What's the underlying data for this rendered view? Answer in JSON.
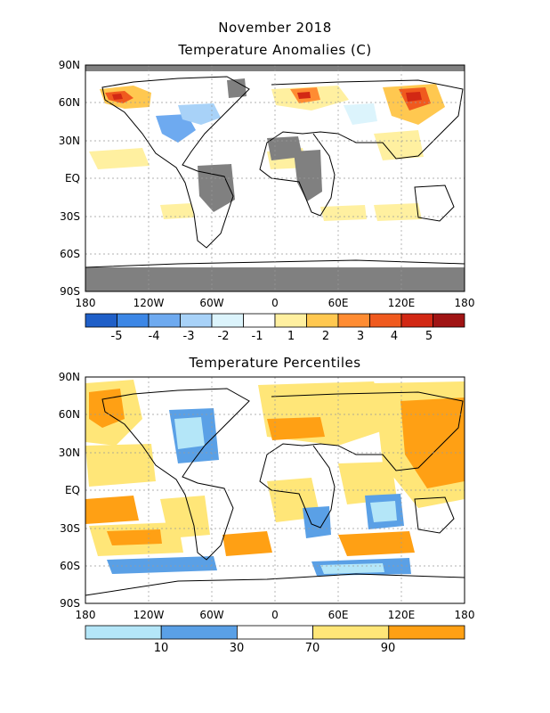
{
  "header": {
    "line1": "November 2018",
    "line2": "Temperature Anomalies (C)"
  },
  "panel2": {
    "title": "Temperature Percentiles"
  },
  "axes": {
    "lat_labels": [
      "90N",
      "60N",
      "30N",
      "EQ",
      "30S",
      "60S",
      "90S"
    ],
    "lon_labels": [
      "180",
      "120W",
      "60W",
      "0",
      "60E",
      "120E",
      "180"
    ]
  },
  "colorbars": {
    "anomaly": {
      "colors": [
        "#1f5fc8",
        "#3c87e6",
        "#6eaaf0",
        "#a8d2f8",
        "#dcf4fc",
        "#ffffff",
        "#fff0a0",
        "#ffc850",
        "#ff8c32",
        "#f05a1e",
        "#d22814",
        "#a01414"
      ],
      "labels": [
        "-5",
        "-4",
        "-3",
        "-2",
        "-1",
        "1",
        "2",
        "3",
        "4",
        "5"
      ]
    },
    "percentile": {
      "colors": [
        "#b4e6f8",
        "#5aa0e6",
        "#ffffff",
        "#ffe678",
        "#ffa014"
      ],
      "labels": [
        "10",
        "30",
        "70",
        "90"
      ]
    }
  },
  "icons": {
    "land_mask": "gray-no-data-shading",
    "coastline": "coastline-outline"
  }
}
